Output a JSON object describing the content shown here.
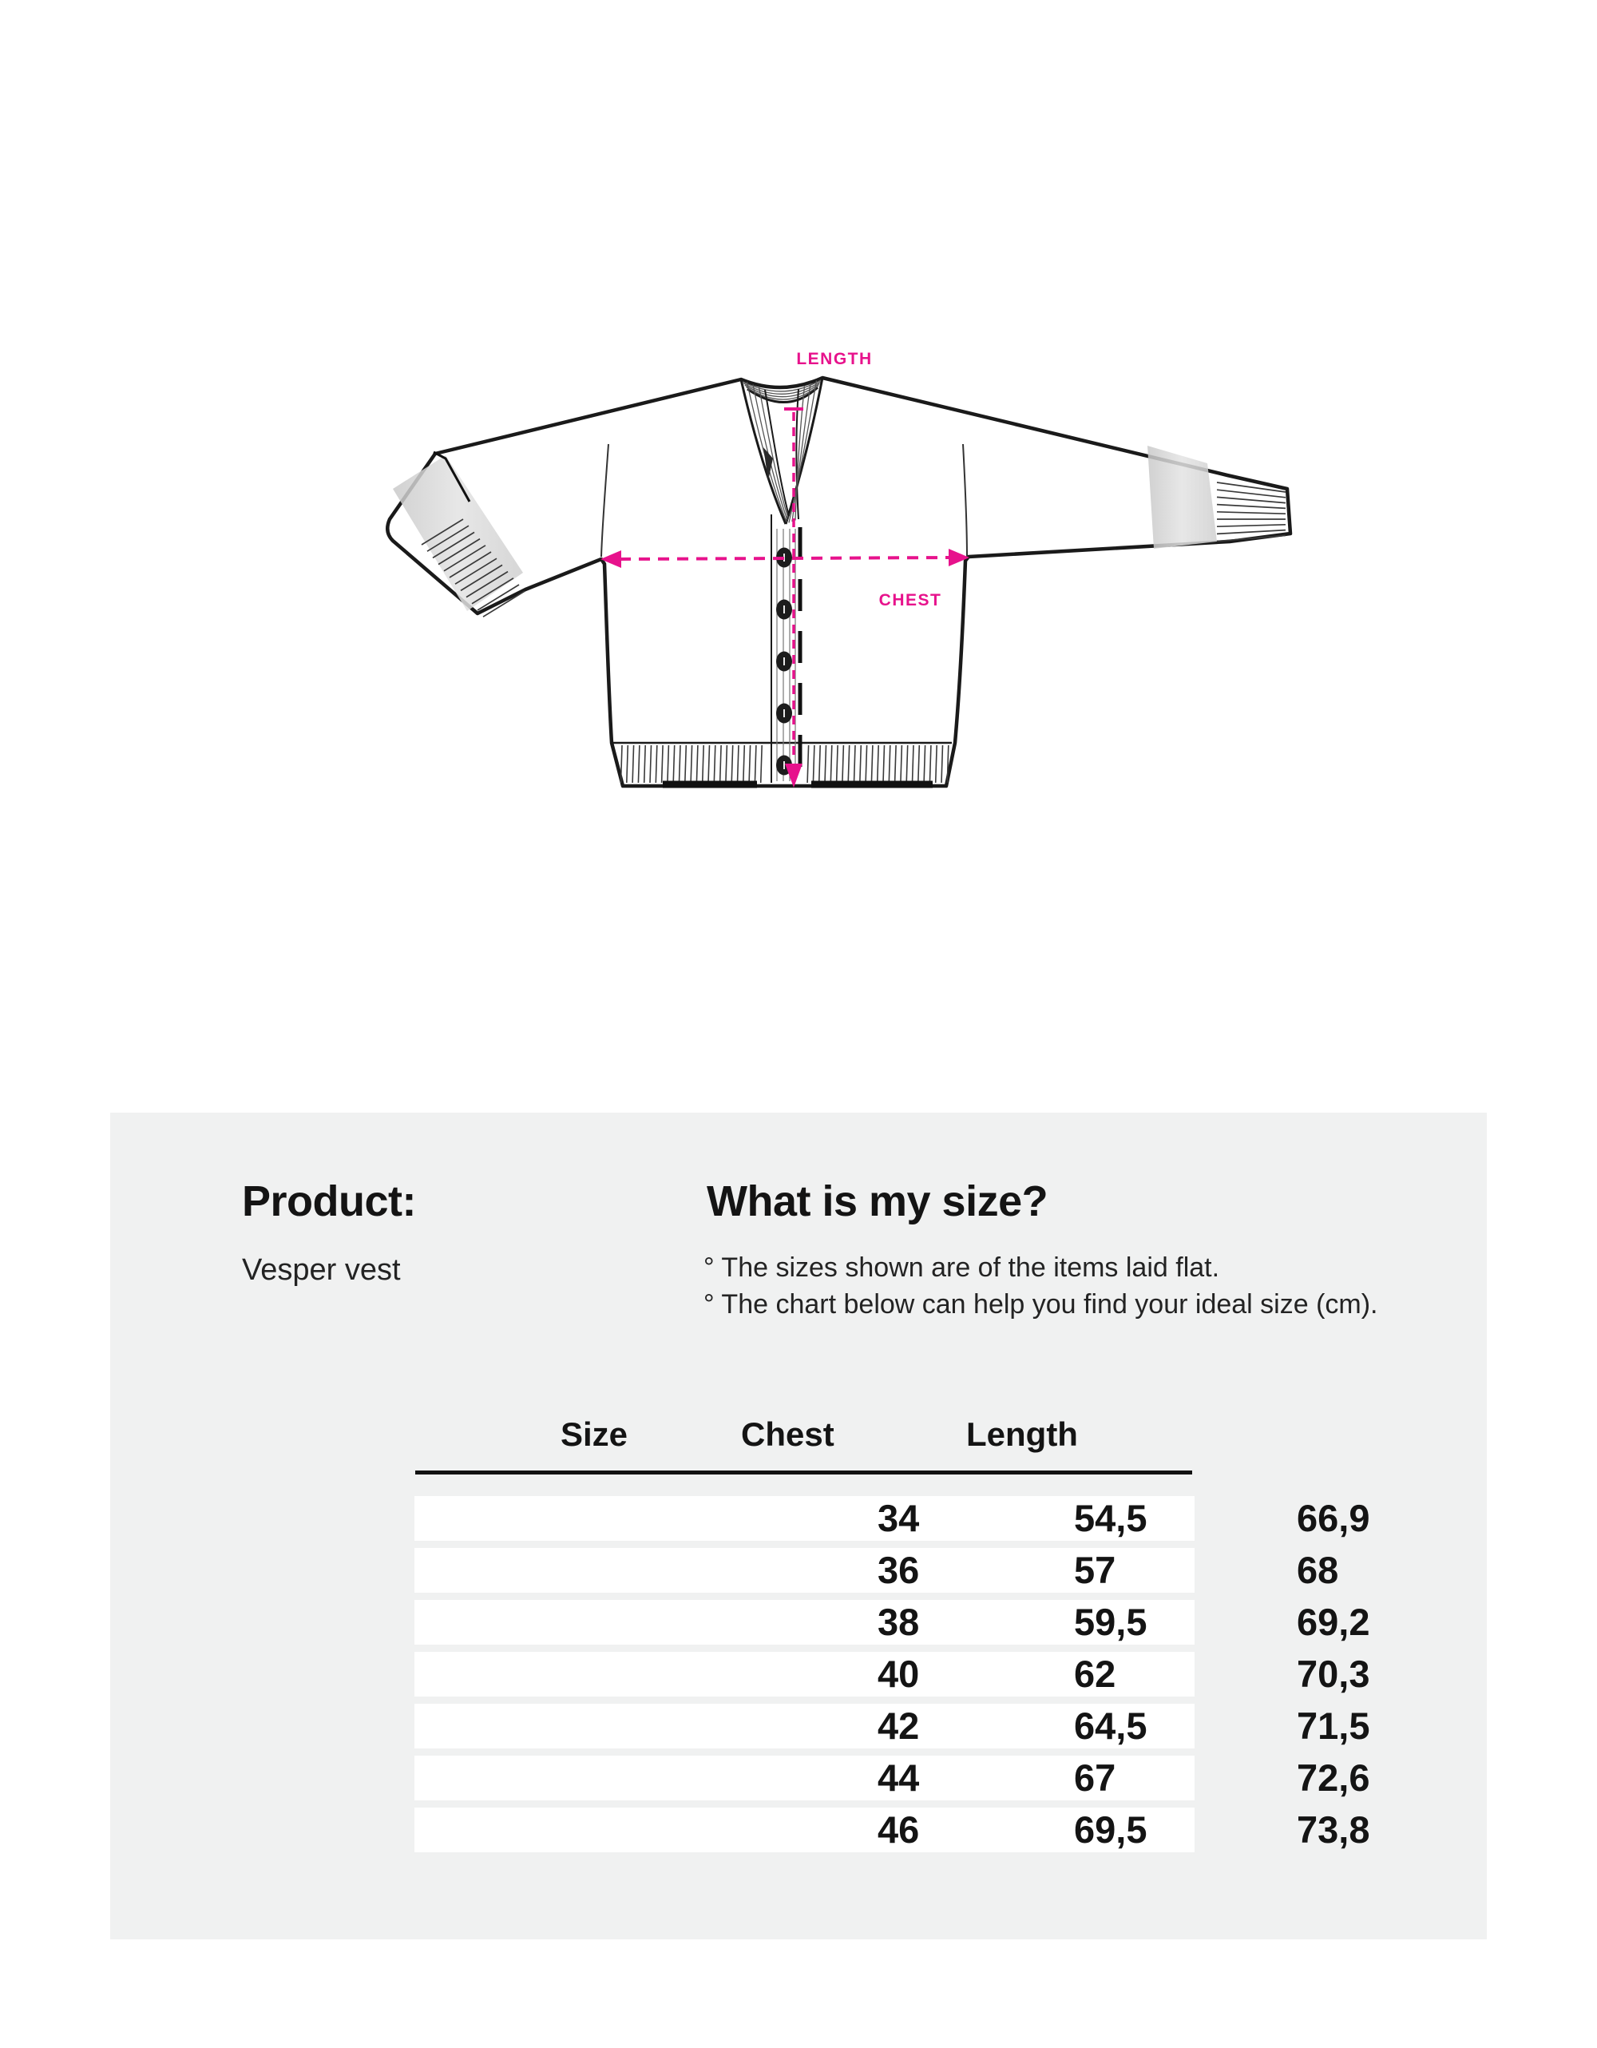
{
  "diagram": {
    "length_label": "LENGTH",
    "chest_label": "CHEST",
    "accent_color": "#E7128C"
  },
  "info": {
    "product_label": "Product:",
    "product_name": "Vesper vest",
    "question_heading": "What is my size?",
    "notes": [
      "° The sizes shown are of the items laid flat.",
      "° The chart below can help you find your ideal size (cm)."
    ]
  },
  "chart_data": {
    "type": "table",
    "title": "What is my size?",
    "columns": [
      "Size",
      "Chest",
      "Length"
    ],
    "rows": [
      [
        "34",
        "54,5",
        "66,9"
      ],
      [
        "36",
        "57",
        "68"
      ],
      [
        "38",
        "59,5",
        "69,2"
      ],
      [
        "40",
        "62",
        "70,3"
      ],
      [
        "42",
        "64,5",
        "71,5"
      ],
      [
        "44",
        "67",
        "72,6"
      ],
      [
        "46",
        "69,5",
        "73,8"
      ]
    ],
    "units": "cm"
  }
}
